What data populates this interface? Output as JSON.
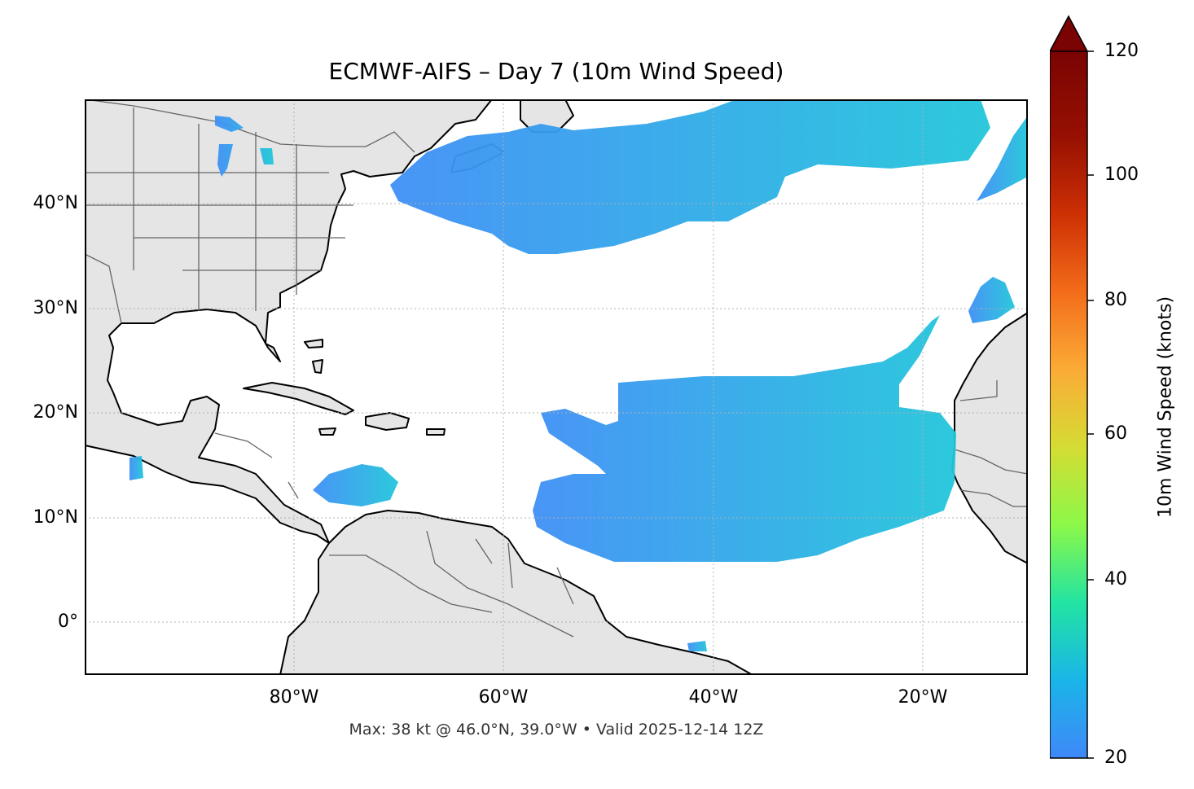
{
  "title": "ECMWF-AIFS – Day 7 (10m Wind Speed)",
  "footer": "Max: 38 kt @ 46.0°N, 39.0°W • Valid 2025-12-14 12Z",
  "map": {
    "lon_range": [
      -100,
      -10
    ],
    "lat_range": [
      -5,
      50
    ],
    "lat_ticks": [
      {
        "value": 40,
        "label": "40°N"
      },
      {
        "value": 30,
        "label": "30°N"
      },
      {
        "value": 20,
        "label": "20°N"
      },
      {
        "value": 10,
        "label": "10°N"
      },
      {
        "value": 0,
        "label": "0°"
      }
    ],
    "lon_ticks": [
      {
        "value": -80,
        "label": "80°W"
      },
      {
        "value": -60,
        "label": "60°W"
      },
      {
        "value": -40,
        "label": "40°W"
      },
      {
        "value": -20,
        "label": "20°W"
      }
    ],
    "gridlines": true,
    "land_color": "#e5e5e5",
    "ocean_color": "#ffffff",
    "coastline_color": "#000000",
    "border_color": "#666666"
  },
  "colorbar": {
    "label": "10m Wind Speed (knots)",
    "min": 20,
    "max": 120,
    "extend": "max",
    "ticks": [
      {
        "value": 120,
        "label": "120"
      },
      {
        "value": 100,
        "label": "100"
      },
      {
        "value": 80,
        "label": "80"
      },
      {
        "value": 60,
        "label": "60"
      },
      {
        "value": 40,
        "label": "40"
      },
      {
        "value": 20,
        "label": "20"
      }
    ],
    "colormap": [
      "#3f88f8",
      "#1ab5e8",
      "#22e4a2",
      "#8cf848",
      "#d5dc34",
      "#fbab36",
      "#f36c1a",
      "#cd3004",
      "#961002",
      "#7a0403"
    ]
  },
  "max_point": {
    "speed_kt": 38,
    "lat": 46.0,
    "lon": -39.0
  }
}
